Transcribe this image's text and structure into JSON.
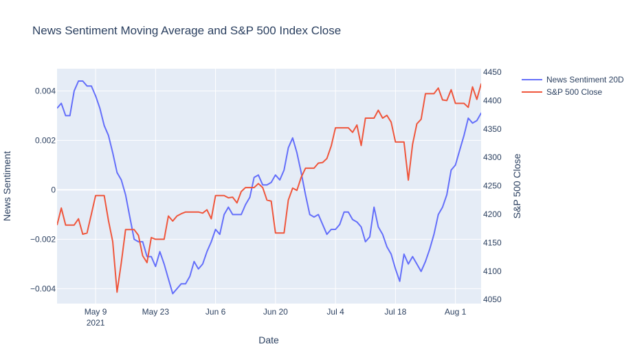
{
  "colors": {
    "plot_bg": "#E5ECF6",
    "grid": "#FFFFFF",
    "text": "#2A3F5F",
    "sentiment": "#636EFA",
    "sp500": "#EF553B"
  },
  "chart_data": {
    "type": "line",
    "title": "News Sentiment Moving Average and S&P 500 Index Close",
    "xlabel": "Date",
    "ylabel_left": "News Sentiment",
    "ylabel_right": "S&P 500 Close",
    "xlim": [
      "2021-04-30",
      "2021-08-07"
    ],
    "ylim_left": [
      -0.0046,
      0.0049
    ],
    "ylim_right": [
      4043,
      4456
    ],
    "x_ticks": [
      {
        "date": "2021-05-09",
        "label": "May 9",
        "sublabel": "2021"
      },
      {
        "date": "2021-05-23",
        "label": "May 23",
        "sublabel": ""
      },
      {
        "date": "2021-06-06",
        "label": "Jun 6",
        "sublabel": ""
      },
      {
        "date": "2021-06-20",
        "label": "Jun 20",
        "sublabel": ""
      },
      {
        "date": "2021-07-04",
        "label": "Jul 4",
        "sublabel": ""
      },
      {
        "date": "2021-07-18",
        "label": "Jul 18",
        "sublabel": ""
      },
      {
        "date": "2021-08-01",
        "label": "Aug 1",
        "sublabel": ""
      }
    ],
    "y_ticks_left": [
      {
        "value": -0.004,
        "label": "−0.004"
      },
      {
        "value": -0.002,
        "label": "−0.002"
      },
      {
        "value": 0,
        "label": "0"
      },
      {
        "value": 0.002,
        "label": "0.002"
      },
      {
        "value": 0.004,
        "label": "0.004"
      }
    ],
    "y_ticks_right": [
      {
        "value": 4050,
        "label": "4050"
      },
      {
        "value": 4100,
        "label": "4100"
      },
      {
        "value": 4150,
        "label": "4150"
      },
      {
        "value": 4200,
        "label": "4200"
      },
      {
        "value": 4250,
        "label": "4250"
      },
      {
        "value": 4300,
        "label": "4300"
      },
      {
        "value": 4350,
        "label": "4350"
      },
      {
        "value": 4400,
        "label": "4400"
      },
      {
        "value": 4450,
        "label": "4450"
      }
    ],
    "grid": true,
    "legend": "top-right, outside plot",
    "series": [
      {
        "name": "News Sentiment 20D",
        "axis": "left",
        "color": "#636EFA",
        "points": [
          [
            "2021-04-30",
            0.0033
          ],
          [
            "2021-05-01",
            0.0035
          ],
          [
            "2021-05-02",
            0.003
          ],
          [
            "2021-05-03",
            0.003
          ],
          [
            "2021-05-04",
            0.004
          ],
          [
            "2021-05-05",
            0.0044
          ],
          [
            "2021-05-06",
            0.0044
          ],
          [
            "2021-05-07",
            0.0042
          ],
          [
            "2021-05-08",
            0.0042
          ],
          [
            "2021-05-09",
            0.0038
          ],
          [
            "2021-05-10",
            0.0033
          ],
          [
            "2021-05-11",
            0.0026
          ],
          [
            "2021-05-12",
            0.0022
          ],
          [
            "2021-05-13",
            0.0015
          ],
          [
            "2021-05-14",
            0.0007
          ],
          [
            "2021-05-15",
            0.0004
          ],
          [
            "2021-05-16",
            -0.0002
          ],
          [
            "2021-05-17",
            -0.0011
          ],
          [
            "2021-05-18",
            -0.002
          ],
          [
            "2021-05-19",
            -0.0021
          ],
          [
            "2021-05-20",
            -0.0021
          ],
          [
            "2021-05-21",
            -0.0027
          ],
          [
            "2021-05-22",
            -0.0027
          ],
          [
            "2021-05-23",
            -0.0031
          ],
          [
            "2021-05-24",
            -0.0025
          ],
          [
            "2021-05-25",
            -0.003
          ],
          [
            "2021-05-26",
            -0.0036
          ],
          [
            "2021-05-27",
            -0.0042
          ],
          [
            "2021-05-28",
            -0.004
          ],
          [
            "2021-05-29",
            -0.0038
          ],
          [
            "2021-05-30",
            -0.0038
          ],
          [
            "2021-05-31",
            -0.0035
          ],
          [
            "2021-06-01",
            -0.0029
          ],
          [
            "2021-06-02",
            -0.0032
          ],
          [
            "2021-06-03",
            -0.003
          ],
          [
            "2021-06-04",
            -0.0025
          ],
          [
            "2021-06-05",
            -0.0021
          ],
          [
            "2021-06-06",
            -0.0016
          ],
          [
            "2021-06-07",
            -0.0018
          ],
          [
            "2021-06-08",
            -0.001
          ],
          [
            "2021-06-09",
            -0.0007
          ],
          [
            "2021-06-10",
            -0.001
          ],
          [
            "2021-06-11",
            -0.001
          ],
          [
            "2021-06-12",
            -0.001
          ],
          [
            "2021-06-13",
            -0.0006
          ],
          [
            "2021-06-14",
            -0.0003
          ],
          [
            "2021-06-15",
            0.0005
          ],
          [
            "2021-06-16",
            0.0006
          ],
          [
            "2021-06-17",
            0.0002
          ],
          [
            "2021-06-18",
            0.0002
          ],
          [
            "2021-06-19",
            0.0003
          ],
          [
            "2021-06-20",
            0.0006
          ],
          [
            "2021-06-21",
            0.0004
          ],
          [
            "2021-06-22",
            0.0008
          ],
          [
            "2021-06-23",
            0.0017
          ],
          [
            "2021-06-24",
            0.0021
          ],
          [
            "2021-06-25",
            0.0015
          ],
          [
            "2021-06-26",
            0.0007
          ],
          [
            "2021-06-27",
            -0.0002
          ],
          [
            "2021-06-28",
            -0.001
          ],
          [
            "2021-06-29",
            -0.0011
          ],
          [
            "2021-06-30",
            -0.001
          ],
          [
            "2021-07-01",
            -0.0014
          ],
          [
            "2021-07-02",
            -0.0018
          ],
          [
            "2021-07-03",
            -0.0016
          ],
          [
            "2021-07-04",
            -0.0016
          ],
          [
            "2021-07-05",
            -0.0014
          ],
          [
            "2021-07-06",
            -0.0009
          ],
          [
            "2021-07-07",
            -0.0009
          ],
          [
            "2021-07-08",
            -0.0012
          ],
          [
            "2021-07-09",
            -0.0013
          ],
          [
            "2021-07-10",
            -0.0015
          ],
          [
            "2021-07-11",
            -0.0021
          ],
          [
            "2021-07-12",
            -0.0019
          ],
          [
            "2021-07-13",
            -0.0007
          ],
          [
            "2021-07-14",
            -0.0015
          ],
          [
            "2021-07-15",
            -0.0018
          ],
          [
            "2021-07-16",
            -0.0023
          ],
          [
            "2021-07-17",
            -0.0026
          ],
          [
            "2021-07-18",
            -0.0032
          ],
          [
            "2021-07-19",
            -0.0037
          ],
          [
            "2021-07-20",
            -0.0026
          ],
          [
            "2021-07-21",
            -0.003
          ],
          [
            "2021-07-22",
            -0.0027
          ],
          [
            "2021-07-23",
            -0.003
          ],
          [
            "2021-07-24",
            -0.0033
          ],
          [
            "2021-07-25",
            -0.0029
          ],
          [
            "2021-07-26",
            -0.0024
          ],
          [
            "2021-07-27",
            -0.0018
          ],
          [
            "2021-07-28",
            -0.001
          ],
          [
            "2021-07-29",
            -0.0007
          ],
          [
            "2021-07-30",
            -0.0002
          ],
          [
            "2021-07-31",
            0.0008
          ],
          [
            "2021-08-01",
            0.001
          ],
          [
            "2021-08-02",
            0.0016
          ],
          [
            "2021-08-03",
            0.0022
          ],
          [
            "2021-08-04",
            0.0029
          ],
          [
            "2021-08-05",
            0.0027
          ],
          [
            "2021-08-06",
            0.0028
          ],
          [
            "2021-08-07",
            0.0031
          ],
          [
            "2021-08-08",
            0.0032
          ],
          [
            "2021-08-09",
            0.0036
          ]
        ]
      },
      {
        "name": "S&P 500 Close",
        "axis": "right",
        "color": "#EF553B",
        "points": [
          [
            "2021-04-30",
            4181
          ],
          [
            "2021-05-01",
            4211
          ],
          [
            "2021-05-02",
            4181
          ],
          [
            "2021-05-03",
            4181
          ],
          [
            "2021-05-04",
            4181
          ],
          [
            "2021-05-05",
            4192
          ],
          [
            "2021-05-06",
            4165
          ],
          [
            "2021-05-07",
            4167
          ],
          [
            "2021-05-08",
            4200
          ],
          [
            "2021-05-09",
            4233
          ],
          [
            "2021-05-10",
            4233
          ],
          [
            "2021-05-11",
            4233
          ],
          [
            "2021-05-12",
            4189
          ],
          [
            "2021-05-13",
            4152
          ],
          [
            "2021-05-14",
            4063
          ],
          [
            "2021-05-15",
            4115
          ],
          [
            "2021-05-16",
            4173
          ],
          [
            "2021-05-17",
            4173
          ],
          [
            "2021-05-18",
            4173
          ],
          [
            "2021-05-19",
            4163
          ],
          [
            "2021-05-20",
            4127
          ],
          [
            "2021-05-21",
            4115
          ],
          [
            "2021-05-22",
            4159
          ],
          [
            "2021-05-23",
            4156
          ],
          [
            "2021-05-24",
            4156
          ],
          [
            "2021-05-25",
            4156
          ],
          [
            "2021-05-26",
            4197
          ],
          [
            "2021-05-27",
            4188
          ],
          [
            "2021-05-28",
            4197
          ],
          [
            "2021-05-29",
            4201
          ],
          [
            "2021-05-30",
            4204
          ],
          [
            "2021-05-31",
            4204
          ],
          [
            "2021-06-01",
            4204
          ],
          [
            "2021-06-02",
            4204
          ],
          [
            "2021-06-03",
            4202
          ],
          [
            "2021-06-04",
            4208
          ],
          [
            "2021-06-05",
            4192
          ],
          [
            "2021-06-06",
            4233
          ],
          [
            "2021-06-07",
            4233
          ],
          [
            "2021-06-08",
            4233
          ],
          [
            "2021-06-09",
            4229
          ],
          [
            "2021-06-10",
            4230
          ],
          [
            "2021-06-11",
            4220
          ],
          [
            "2021-06-12",
            4240
          ],
          [
            "2021-06-13",
            4247
          ],
          [
            "2021-06-14",
            4247
          ],
          [
            "2021-06-15",
            4247
          ],
          [
            "2021-06-16",
            4254
          ],
          [
            "2021-06-17",
            4247
          ],
          [
            "2021-06-18",
            4225
          ],
          [
            "2021-06-19",
            4223
          ],
          [
            "2021-06-20",
            4167
          ],
          [
            "2021-06-21",
            4167
          ],
          [
            "2021-06-22",
            4167
          ],
          [
            "2021-06-23",
            4225
          ],
          [
            "2021-06-24",
            4246
          ],
          [
            "2021-06-25",
            4242
          ],
          [
            "2021-06-26",
            4265
          ],
          [
            "2021-06-27",
            4281
          ],
          [
            "2021-06-28",
            4281
          ],
          [
            "2021-06-29",
            4281
          ],
          [
            "2021-06-30",
            4290
          ],
          [
            "2021-07-01",
            4291
          ],
          [
            "2021-07-02",
            4298
          ],
          [
            "2021-07-03",
            4320
          ],
          [
            "2021-07-04",
            4352
          ],
          [
            "2021-07-05",
            4352
          ],
          [
            "2021-07-06",
            4352
          ],
          [
            "2021-07-07",
            4352
          ],
          [
            "2021-07-08",
            4344
          ],
          [
            "2021-07-09",
            4357
          ],
          [
            "2021-07-10",
            4321
          ],
          [
            "2021-07-11",
            4369
          ],
          [
            "2021-07-12",
            4369
          ],
          [
            "2021-07-13",
            4369
          ],
          [
            "2021-07-14",
            4383
          ],
          [
            "2021-07-15",
            4369
          ],
          [
            "2021-07-16",
            4374
          ],
          [
            "2021-07-17",
            4362
          ],
          [
            "2021-07-18",
            4327
          ],
          [
            "2021-07-19",
            4327
          ],
          [
            "2021-07-20",
            4327
          ],
          [
            "2021-07-21",
            4260
          ],
          [
            "2021-07-22",
            4323
          ],
          [
            "2021-07-23",
            4359
          ],
          [
            "2021-07-24",
            4367
          ],
          [
            "2021-07-25",
            4412
          ],
          [
            "2021-07-26",
            4412
          ],
          [
            "2021-07-27",
            4412
          ],
          [
            "2021-07-28",
            4422
          ],
          [
            "2021-07-29",
            4401
          ],
          [
            "2021-07-30",
            4400
          ],
          [
            "2021-07-31",
            4419
          ],
          [
            "2021-08-01",
            4395
          ],
          [
            "2021-08-02",
            4395
          ],
          [
            "2021-08-03",
            4395
          ],
          [
            "2021-08-04",
            4388
          ],
          [
            "2021-08-05",
            4424
          ],
          [
            "2021-08-06",
            4402
          ],
          [
            "2021-08-07",
            4429
          ],
          [
            "2021-08-08",
            4437
          ],
          [
            "2021-08-09",
            4437
          ]
        ]
      }
    ]
  }
}
